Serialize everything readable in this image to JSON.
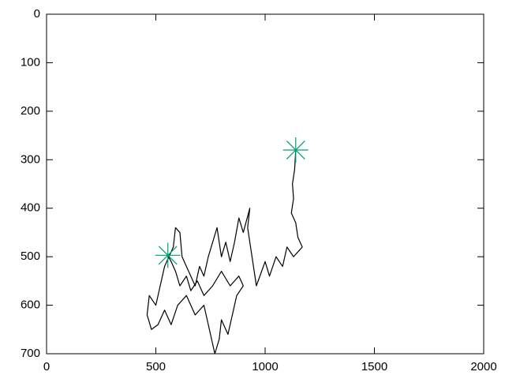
{
  "chart_data": {
    "type": "line",
    "xlim": [
      0,
      2000
    ],
    "xticks": [
      0,
      500,
      1000,
      1500,
      2000
    ],
    "ylim": [
      700,
      0
    ],
    "yticks": [
      0,
      100,
      200,
      300,
      400,
      500,
      600,
      700
    ],
    "grid": false,
    "series": [
      {
        "type": "line",
        "color": "#000000",
        "x": [
          1140,
          1135,
          1125,
          1130,
          1120,
          1140,
          1150,
          1170,
          1130,
          1100,
          1080,
          1050,
          1020,
          1000,
          960,
          940,
          920,
          930,
          900,
          880,
          860,
          840,
          820,
          800,
          780,
          760,
          740,
          720,
          700,
          680,
          650,
          620,
          610,
          590,
          580,
          560,
          540,
          520,
          500,
          470,
          460,
          480,
          510,
          540,
          570,
          600,
          640,
          680,
          720,
          740,
          760,
          770,
          790,
          800,
          830,
          850,
          870,
          900,
          880,
          840,
          800,
          760,
          720,
          690,
          660,
          640,
          610,
          590,
          570,
          555
        ],
        "y": [
          280,
          320,
          350,
          380,
          410,
          430,
          460,
          480,
          500,
          480,
          520,
          500,
          540,
          510,
          560,
          500,
          440,
          400,
          450,
          420,
          470,
          510,
          470,
          500,
          440,
          470,
          500,
          540,
          520,
          560,
          530,
          500,
          450,
          440,
          480,
          500,
          520,
          560,
          600,
          580,
          620,
          650,
          640,
          610,
          640,
          600,
          580,
          620,
          600,
          640,
          680,
          700,
          670,
          630,
          660,
          620,
          580,
          560,
          540,
          560,
          530,
          560,
          580,
          550,
          570,
          540,
          560,
          530,
          510,
          497
        ]
      },
      {
        "type": "scatter",
        "color": "#009e73",
        "x": [
          1140,
          555
        ],
        "y": [
          280,
          497
        ]
      }
    ]
  }
}
